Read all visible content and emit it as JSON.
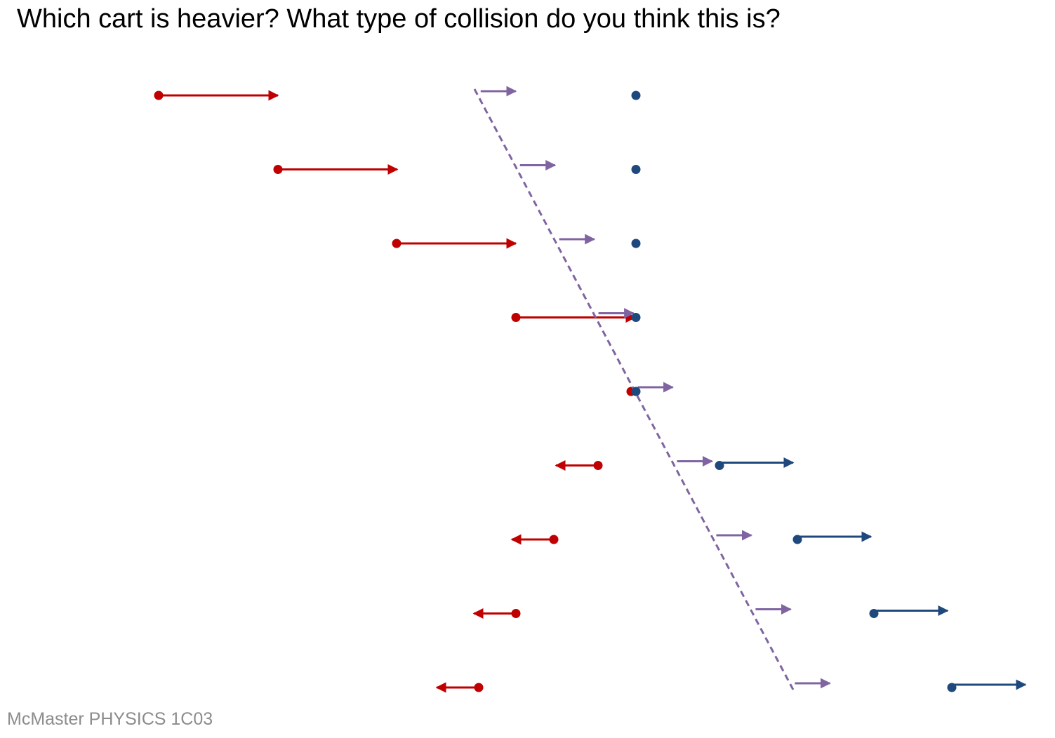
{
  "title": "Which cart is heavier? What type of collision do you think this is?",
  "footer": "McMaster PHYSICS 1C03",
  "colors": {
    "cart_red": "#c00000",
    "cart_blue": "#1f497d",
    "center_of_mass": "#8064a2"
  },
  "frames": [
    {
      "red": {
        "direction": "right",
        "speed": 3.4
      },
      "blue": {
        "direction": "none",
        "speed": 0
      },
      "com": {
        "direction": "right",
        "speed": 1.0
      }
    },
    {
      "red": {
        "direction": "right",
        "speed": 3.4
      },
      "blue": {
        "direction": "none",
        "speed": 0
      },
      "com": {
        "direction": "right",
        "speed": 1.0
      }
    },
    {
      "red": {
        "direction": "right",
        "speed": 3.4
      },
      "blue": {
        "direction": "none",
        "speed": 0
      },
      "com": {
        "direction": "right",
        "speed": 1.0
      }
    },
    {
      "red": {
        "direction": "right",
        "speed": 3.4
      },
      "blue": {
        "direction": "none",
        "speed": 0
      },
      "com": {
        "direction": "right",
        "speed": 1.0
      }
    },
    {
      "red": {
        "direction": "none",
        "speed": 0
      },
      "blue": {
        "direction": "none",
        "speed": 0
      },
      "com": {
        "direction": "right",
        "speed": 1.0
      }
    },
    {
      "red": {
        "direction": "left",
        "speed": 1.2
      },
      "blue": {
        "direction": "right",
        "speed": 2.1
      },
      "com": {
        "direction": "right",
        "speed": 1.0
      }
    },
    {
      "red": {
        "direction": "left",
        "speed": 1.2
      },
      "blue": {
        "direction": "right",
        "speed": 2.1
      },
      "com": {
        "direction": "right",
        "speed": 1.0
      }
    },
    {
      "red": {
        "direction": "left",
        "speed": 1.2
      },
      "blue": {
        "direction": "right",
        "speed": 2.1
      },
      "com": {
        "direction": "right",
        "speed": 1.0
      }
    },
    {
      "red": {
        "direction": "left",
        "speed": 1.2
      },
      "blue": {
        "direction": "right",
        "speed": 2.1
      },
      "com": {
        "direction": "right",
        "speed": 1.0
      }
    }
  ]
}
